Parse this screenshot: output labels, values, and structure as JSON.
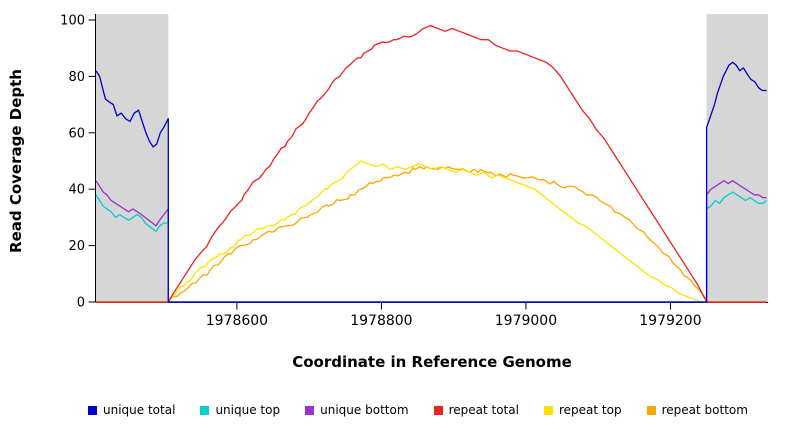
{
  "chart_data": {
    "type": "line",
    "title": "",
    "xlabel": "Coordinate in Reference Genome",
    "ylabel": "Read Coverage Depth",
    "xlim": [
      1978405,
      1979335
    ],
    "ylim": [
      0,
      100
    ],
    "xticks": [
      1978600,
      1978800,
      1979000,
      1979200
    ],
    "yticks": [
      0,
      20,
      40,
      60,
      80,
      100
    ],
    "grid": false,
    "legend_position": "bottom",
    "shaded_regions": [
      {
        "x0": 1978405,
        "x1": 1978505,
        "color": "#d6d6d6"
      },
      {
        "x0": 1979250,
        "x1": 1979335,
        "color": "#d6d6d6"
      }
    ],
    "series": [
      {
        "name": "unique total",
        "color": "#0000cd",
        "points": [
          [
            1978405,
            82
          ],
          [
            1978410,
            80
          ],
          [
            1978414,
            76
          ],
          [
            1978418,
            72
          ],
          [
            1978423,
            71
          ],
          [
            1978429,
            70
          ],
          [
            1978434,
            66
          ],
          [
            1978440,
            67
          ],
          [
            1978446,
            65
          ],
          [
            1978452,
            64
          ],
          [
            1978458,
            67
          ],
          [
            1978464,
            68
          ],
          [
            1978469,
            64
          ],
          [
            1978474,
            60
          ],
          [
            1978479,
            57
          ],
          [
            1978484,
            55
          ],
          [
            1978489,
            56
          ],
          [
            1978494,
            60
          ],
          [
            1978499,
            62
          ],
          [
            1978505,
            65
          ],
          [
            1978505,
            0
          ],
          [
            1979250,
            0
          ],
          [
            1979250,
            62
          ],
          [
            1979253,
            64
          ],
          [
            1979257,
            67
          ],
          [
            1979261,
            70
          ],
          [
            1979265,
            74
          ],
          [
            1979269,
            77
          ],
          [
            1979273,
            80
          ],
          [
            1979277,
            82
          ],
          [
            1979281,
            84
          ],
          [
            1979286,
            85
          ],
          [
            1979291,
            84
          ],
          [
            1979296,
            82
          ],
          [
            1979301,
            83
          ],
          [
            1979306,
            81
          ],
          [
            1979311,
            79
          ],
          [
            1979317,
            78
          ],
          [
            1979322,
            76
          ],
          [
            1979327,
            75
          ],
          [
            1979333,
            75
          ]
        ]
      },
      {
        "name": "unique top",
        "color": "#00ced1",
        "points": [
          [
            1978405,
            38
          ],
          [
            1978410,
            36
          ],
          [
            1978415,
            34
          ],
          [
            1978420,
            33
          ],
          [
            1978426,
            32
          ],
          [
            1978432,
            30
          ],
          [
            1978438,
            31
          ],
          [
            1978444,
            30
          ],
          [
            1978450,
            29
          ],
          [
            1978456,
            30
          ],
          [
            1978462,
            31
          ],
          [
            1978468,
            30
          ],
          [
            1978473,
            28
          ],
          [
            1978478,
            27
          ],
          [
            1978483,
            26
          ],
          [
            1978488,
            25
          ],
          [
            1978493,
            27
          ],
          [
            1978499,
            28
          ],
          [
            1978505,
            28
          ],
          [
            1978505,
            0
          ],
          [
            1979250,
            0
          ],
          [
            1979250,
            33
          ],
          [
            1979256,
            34
          ],
          [
            1979262,
            36
          ],
          [
            1979268,
            35
          ],
          [
            1979274,
            37
          ],
          [
            1979280,
            38
          ],
          [
            1979286,
            39
          ],
          [
            1979292,
            38
          ],
          [
            1979298,
            37
          ],
          [
            1979304,
            36
          ],
          [
            1979310,
            37
          ],
          [
            1979316,
            36
          ],
          [
            1979322,
            35
          ],
          [
            1979328,
            35
          ],
          [
            1979333,
            36
          ]
        ]
      },
      {
        "name": "unique bottom",
        "color": "#9932cc",
        "points": [
          [
            1978405,
            43
          ],
          [
            1978410,
            41
          ],
          [
            1978415,
            39
          ],
          [
            1978420,
            38
          ],
          [
            1978426,
            36
          ],
          [
            1978432,
            35
          ],
          [
            1978438,
            34
          ],
          [
            1978444,
            33
          ],
          [
            1978450,
            32
          ],
          [
            1978456,
            33
          ],
          [
            1978462,
            32
          ],
          [
            1978468,
            31
          ],
          [
            1978473,
            30
          ],
          [
            1978478,
            29
          ],
          [
            1978483,
            28
          ],
          [
            1978488,
            27
          ],
          [
            1978493,
            29
          ],
          [
            1978499,
            31
          ],
          [
            1978505,
            33
          ],
          [
            1978505,
            0
          ],
          [
            1979250,
            0
          ],
          [
            1979250,
            38
          ],
          [
            1979256,
            40
          ],
          [
            1979262,
            41
          ],
          [
            1979268,
            42
          ],
          [
            1979274,
            43
          ],
          [
            1979280,
            42
          ],
          [
            1979286,
            43
          ],
          [
            1979292,
            42
          ],
          [
            1979298,
            41
          ],
          [
            1979304,
            40
          ],
          [
            1979310,
            39
          ],
          [
            1979316,
            38
          ],
          [
            1979322,
            38
          ],
          [
            1979328,
            37
          ],
          [
            1979333,
            37
          ]
        ]
      },
      {
        "name": "repeat total",
        "color": "#ee2020",
        "points": [
          [
            1978405,
            0
          ],
          [
            1978505,
            0
          ],
          [
            1978512,
            3
          ],
          [
            1978522,
            7
          ],
          [
            1978532,
            11
          ],
          [
            1978542,
            15
          ],
          [
            1978552,
            18
          ],
          [
            1978565,
            23
          ],
          [
            1978580,
            28
          ],
          [
            1978595,
            33
          ],
          [
            1978610,
            38
          ],
          [
            1978625,
            43
          ],
          [
            1978640,
            47
          ],
          [
            1978655,
            52
          ],
          [
            1978670,
            57
          ],
          [
            1978685,
            62
          ],
          [
            1978700,
            67
          ],
          [
            1978715,
            72
          ],
          [
            1978730,
            77
          ],
          [
            1978745,
            81
          ],
          [
            1978760,
            85
          ],
          [
            1978775,
            88
          ],
          [
            1978790,
            91
          ],
          [
            1978805,
            92
          ],
          [
            1978820,
            93
          ],
          [
            1978835,
            94
          ],
          [
            1978848,
            95
          ],
          [
            1978858,
            97
          ],
          [
            1978868,
            98
          ],
          [
            1978878,
            97
          ],
          [
            1978888,
            96
          ],
          [
            1978898,
            97
          ],
          [
            1978908,
            96
          ],
          [
            1978918,
            95
          ],
          [
            1978928,
            94
          ],
          [
            1978938,
            93
          ],
          [
            1978948,
            93
          ],
          [
            1978958,
            91
          ],
          [
            1978968,
            90
          ],
          [
            1978978,
            89
          ],
          [
            1978988,
            89
          ],
          [
            1978998,
            88
          ],
          [
            1979008,
            87
          ],
          [
            1979018,
            86
          ],
          [
            1979028,
            85
          ],
          [
            1979038,
            83
          ],
          [
            1979048,
            80
          ],
          [
            1979058,
            76
          ],
          [
            1979068,
            72
          ],
          [
            1979078,
            68
          ],
          [
            1979088,
            65
          ],
          [
            1979098,
            61
          ],
          [
            1979108,
            58
          ],
          [
            1979118,
            54
          ],
          [
            1979128,
            50
          ],
          [
            1979138,
            46
          ],
          [
            1979148,
            42
          ],
          [
            1979158,
            38
          ],
          [
            1979168,
            34
          ],
          [
            1979178,
            30
          ],
          [
            1979188,
            26
          ],
          [
            1979198,
            22
          ],
          [
            1979208,
            18
          ],
          [
            1979218,
            14
          ],
          [
            1979228,
            10
          ],
          [
            1979238,
            6
          ],
          [
            1979246,
            2
          ],
          [
            1979250,
            0
          ],
          [
            1979333,
            0
          ]
        ]
      },
      {
        "name": "repeat top",
        "color": "#ffe100",
        "points": [
          [
            1978405,
            0
          ],
          [
            1978505,
            0
          ],
          [
            1978515,
            3
          ],
          [
            1978530,
            7
          ],
          [
            1978545,
            11
          ],
          [
            1978560,
            14
          ],
          [
            1978575,
            17
          ],
          [
            1978590,
            19
          ],
          [
            1978605,
            22
          ],
          [
            1978620,
            24
          ],
          [
            1978635,
            26
          ],
          [
            1978650,
            27
          ],
          [
            1978665,
            29
          ],
          [
            1978680,
            31
          ],
          [
            1978695,
            34
          ],
          [
            1978710,
            37
          ],
          [
            1978725,
            40
          ],
          [
            1978740,
            43
          ],
          [
            1978752,
            46
          ],
          [
            1978762,
            48
          ],
          [
            1978772,
            50
          ],
          [
            1978782,
            49
          ],
          [
            1978792,
            48
          ],
          [
            1978802,
            49
          ],
          [
            1978812,
            47
          ],
          [
            1978822,
            48
          ],
          [
            1978832,
            47
          ],
          [
            1978842,
            48
          ],
          [
            1978852,
            49
          ],
          [
            1978862,
            48
          ],
          [
            1978872,
            47
          ],
          [
            1978882,
            48
          ],
          [
            1978892,
            47
          ],
          [
            1978902,
            46
          ],
          [
            1978912,
            47
          ],
          [
            1978922,
            46
          ],
          [
            1978932,
            45
          ],
          [
            1978942,
            46
          ],
          [
            1978952,
            44
          ],
          [
            1978962,
            45
          ],
          [
            1978972,
            44
          ],
          [
            1978982,
            43
          ],
          [
            1978992,
            42
          ],
          [
            1979002,
            41
          ],
          [
            1979012,
            40
          ],
          [
            1979022,
            38
          ],
          [
            1979032,
            36
          ],
          [
            1979042,
            34
          ],
          [
            1979052,
            32
          ],
          [
            1979062,
            30
          ],
          [
            1979072,
            28
          ],
          [
            1979082,
            27
          ],
          [
            1979092,
            25
          ],
          [
            1979102,
            23
          ],
          [
            1979112,
            21
          ],
          [
            1979122,
            19
          ],
          [
            1979132,
            17
          ],
          [
            1979142,
            15
          ],
          [
            1979152,
            13
          ],
          [
            1979162,
            11
          ],
          [
            1979172,
            9
          ],
          [
            1979182,
            8
          ],
          [
            1979192,
            6
          ],
          [
            1979202,
            5
          ],
          [
            1979212,
            3
          ],
          [
            1979222,
            2
          ],
          [
            1979232,
            1
          ],
          [
            1979242,
            0
          ],
          [
            1979333,
            0
          ]
        ]
      },
      {
        "name": "repeat bottom",
        "color": "#ffa500",
        "points": [
          [
            1978405,
            0
          ],
          [
            1978505,
            0
          ],
          [
            1978517,
            2
          ],
          [
            1978532,
            5
          ],
          [
            1978547,
            8
          ],
          [
            1978562,
            11
          ],
          [
            1978577,
            14
          ],
          [
            1978592,
            17
          ],
          [
            1978607,
            20
          ],
          [
            1978622,
            22
          ],
          [
            1978637,
            24
          ],
          [
            1978652,
            25
          ],
          [
            1978667,
            27
          ],
          [
            1978682,
            28
          ],
          [
            1978697,
            30
          ],
          [
            1978712,
            32
          ],
          [
            1978727,
            34
          ],
          [
            1978742,
            36
          ],
          [
            1978757,
            38
          ],
          [
            1978772,
            40
          ],
          [
            1978787,
            42
          ],
          [
            1978802,
            44
          ],
          [
            1978817,
            45
          ],
          [
            1978832,
            46
          ],
          [
            1978847,
            47
          ],
          [
            1978862,
            48
          ],
          [
            1978877,
            47
          ],
          [
            1978892,
            48
          ],
          [
            1978907,
            47
          ],
          [
            1978922,
            46
          ],
          [
            1978937,
            47
          ],
          [
            1978952,
            46
          ],
          [
            1978967,
            45
          ],
          [
            1978982,
            45
          ],
          [
            1978997,
            44
          ],
          [
            1979012,
            44
          ],
          [
            1979027,
            43
          ],
          [
            1979042,
            42
          ],
          [
            1979057,
            41
          ],
          [
            1979072,
            40
          ],
          [
            1979087,
            38
          ],
          [
            1979102,
            36
          ],
          [
            1979117,
            34
          ],
          [
            1979132,
            31
          ],
          [
            1979147,
            28
          ],
          [
            1979162,
            25
          ],
          [
            1979177,
            21
          ],
          [
            1979192,
            17
          ],
          [
            1979207,
            13
          ],
          [
            1979222,
            9
          ],
          [
            1979237,
            5
          ],
          [
            1979247,
            2
          ],
          [
            1979252,
            0
          ],
          [
            1979333,
            0
          ]
        ]
      }
    ]
  }
}
